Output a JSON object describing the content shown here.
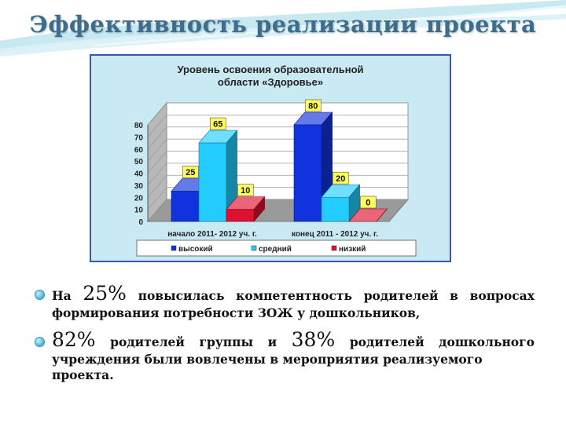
{
  "slide": {
    "title": "Эффективность реализации проекта"
  },
  "chart_data": {
    "type": "bar",
    "title": "Уровень освоения образовательной области «Здоровье»",
    "title_lines": [
      "Уровень освоения образовательной",
      "области «Здоровье»"
    ],
    "categories": [
      "начало 2011- 2012 уч. г.",
      "конец 2011 - 2012 уч. г."
    ],
    "series": [
      {
        "name": "высокий",
        "values": [
          25,
          80
        ],
        "color": "#1133dd"
      },
      {
        "name": "средний",
        "values": [
          65,
          20
        ],
        "color": "#22ccff"
      },
      {
        "name": "низкий",
        "values": [
          10,
          0
        ],
        "color": "#e01030"
      }
    ],
    "ylim": [
      0,
      80
    ],
    "yticks": [
      0,
      10,
      20,
      30,
      40,
      50,
      60,
      70,
      80
    ],
    "xlabel": "",
    "ylabel": "",
    "legend_position": "bottom",
    "grid": true,
    "three_d": true
  },
  "bullets": [
    {
      "prefix": "На",
      "number": "25%",
      "words": [
        "повысилась",
        "компетентность",
        "родителей",
        "в",
        "вопросах"
      ],
      "line2": "формирования потребности ЗОЖ у дошкольников,"
    },
    {
      "number1": "82%",
      "mid": [
        "родителей",
        "группы",
        "и"
      ],
      "number2": "38%",
      "tail": [
        "родителей",
        "дошкольного"
      ],
      "line2": "учреждения были вовлечены в мероприятия реализуемого проекта."
    }
  ]
}
